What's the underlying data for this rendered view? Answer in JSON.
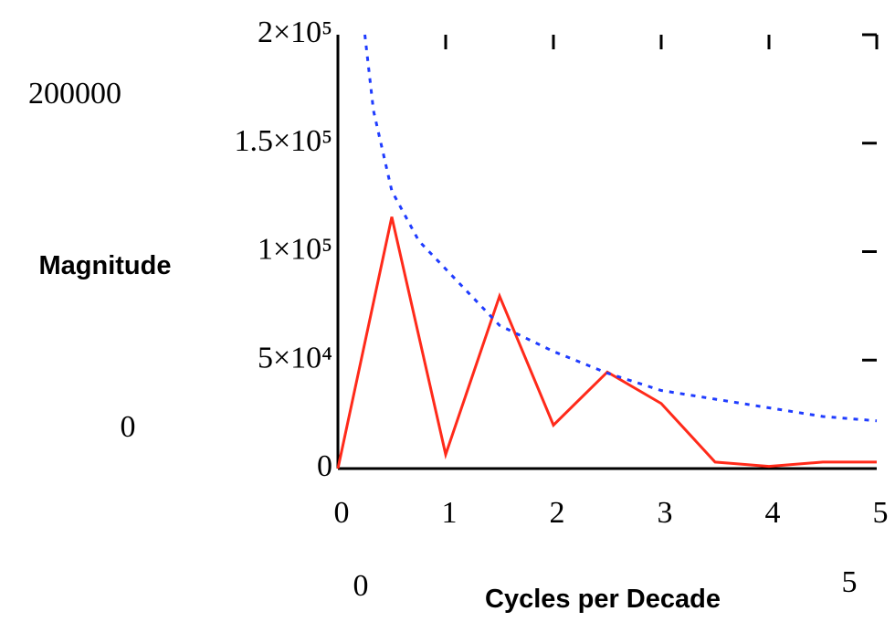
{
  "chart_data": {
    "type": "line",
    "y_label": "Magnitude",
    "x_label": "Cycles per Decade",
    "xlim": [
      0,
      5
    ],
    "ylim": [
      0,
      200000
    ],
    "xticks": [
      0,
      1,
      2,
      3,
      4,
      5
    ],
    "yticks": [
      {
        "value": 0,
        "label": "0"
      },
      {
        "value": 50000,
        "label": "5×10⁴"
      },
      {
        "value": 100000,
        "label": "1×10⁵"
      },
      {
        "value": 150000,
        "label": "1.5×10⁵"
      },
      {
        "value": 200000,
        "label": "2×10⁵"
      }
    ],
    "series": [
      {
        "color": "#ff2a1a",
        "dash": false,
        "x": [
          0,
          0.5,
          1,
          1.5,
          2,
          2.5,
          3,
          3.5,
          4,
          4.5,
          5
        ],
        "values": [
          0,
          116000,
          6500,
          79500,
          20000,
          44500,
          30000,
          3000,
          1000,
          3000,
          3000
        ]
      },
      {
        "color": "#1f3cff",
        "dash": true,
        "x": [
          0.25,
          0.33,
          0.5,
          0.75,
          1,
          1.5,
          2,
          2.5,
          3,
          3.5,
          4,
          4.5,
          5
        ],
        "values": [
          200000,
          165000,
          128000,
          105000,
          92000,
          66000,
          54000,
          44000,
          36000,
          32000,
          28000,
          24000,
          22000
        ]
      }
    ]
  }
}
